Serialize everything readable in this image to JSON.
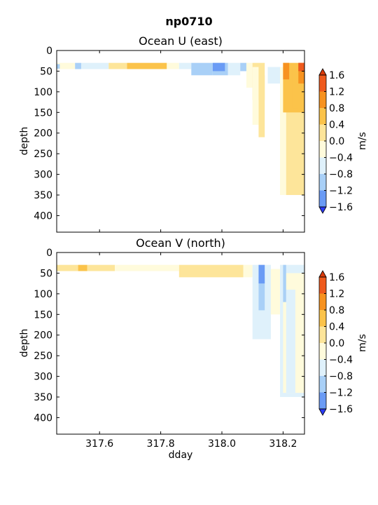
{
  "figure": {
    "title": "np0710"
  },
  "colors": {
    "levels": [
      "#2b3bf5",
      "#4d6ff5",
      "#6a9bf5",
      "#a9d0f7",
      "#dff1fb",
      "#fffbdc",
      "#fde59a",
      "#fbc34a",
      "#f7921f",
      "#ef5a1d",
      "#d93a0a"
    ]
  },
  "chart_data": [
    {
      "type": "heatmap",
      "title": "Ocean U (east)",
      "xlabel": "",
      "ylabel": "depth",
      "xlim": [
        317.46,
        318.27
      ],
      "ylim": [
        440,
        0
      ],
      "x_ticks": [
        "317.6",
        "317.8",
        "318.0",
        "318.2"
      ],
      "y_ticks": [
        "0",
        "50",
        "100",
        "150",
        "200",
        "250",
        "300",
        "350",
        "400"
      ],
      "colorbar": {
        "label": "m/s",
        "ticks": [
          "1.6",
          "1.2",
          "0.8",
          "0.4",
          "0.0",
          "−0.4",
          "−0.8",
          "−1.2",
          "−1.6"
        ],
        "extend": "both"
      },
      "cells": [
        {
          "x0": 317.46,
          "x1": 317.52,
          "d0": 30,
          "d1": 45,
          "level": 5
        },
        {
          "x0": 317.46,
          "x1": 317.47,
          "d0": 33,
          "d1": 44,
          "level": 3
        },
        {
          "x0": 317.52,
          "x1": 317.54,
          "d0": 30,
          "d1": 45,
          "level": 3
        },
        {
          "x0": 317.54,
          "x1": 317.63,
          "d0": 30,
          "d1": 45,
          "level": 4
        },
        {
          "x0": 317.63,
          "x1": 317.69,
          "d0": 30,
          "d1": 45,
          "level": 6
        },
        {
          "x0": 317.69,
          "x1": 317.82,
          "d0": 30,
          "d1": 45,
          "level": 7
        },
        {
          "x0": 317.82,
          "x1": 317.86,
          "d0": 30,
          "d1": 45,
          "level": 5
        },
        {
          "x0": 317.86,
          "x1": 317.9,
          "d0": 30,
          "d1": 45,
          "level": 4
        },
        {
          "x0": 317.9,
          "x1": 317.97,
          "d0": 30,
          "d1": 60,
          "level": 3
        },
        {
          "x0": 317.97,
          "x1": 318.02,
          "d0": 30,
          "d1": 60,
          "level": 3
        },
        {
          "x0": 317.97,
          "x1": 318.01,
          "d0": 30,
          "d1": 50,
          "level": 2
        },
        {
          "x0": 318.02,
          "x1": 318.06,
          "d0": 30,
          "d1": 60,
          "level": 4
        },
        {
          "x0": 318.06,
          "x1": 318.08,
          "d0": 30,
          "d1": 50,
          "level": 3
        },
        {
          "x0": 318.08,
          "x1": 318.1,
          "d0": 30,
          "d1": 90,
          "level": 5
        },
        {
          "x0": 318.1,
          "x1": 318.14,
          "d0": 30,
          "d1": 120,
          "level": 6
        },
        {
          "x0": 318.12,
          "x1": 318.14,
          "d0": 60,
          "d1": 210,
          "level": 6
        },
        {
          "x0": 318.1,
          "x1": 318.12,
          "d0": 40,
          "d1": 180,
          "level": 5
        },
        {
          "x0": 318.15,
          "x1": 318.19,
          "d0": 40,
          "d1": 80,
          "level": 4
        },
        {
          "x0": 318.19,
          "x1": 318.27,
          "d0": 40,
          "d1": 350,
          "level": 5
        },
        {
          "x0": 318.21,
          "x1": 318.27,
          "d0": 120,
          "d1": 350,
          "level": 6
        },
        {
          "x0": 318.2,
          "x1": 318.27,
          "d0": 30,
          "d1": 150,
          "level": 7
        },
        {
          "x0": 318.2,
          "x1": 318.22,
          "d0": 30,
          "d1": 70,
          "level": 8
        },
        {
          "x0": 318.23,
          "x1": 318.25,
          "d0": 40,
          "d1": 140,
          "level": 7
        },
        {
          "x0": 318.25,
          "x1": 318.27,
          "d0": 30,
          "d1": 80,
          "level": 8
        },
        {
          "x0": 318.25,
          "x1": 318.27,
          "d0": 30,
          "d1": 50,
          "level": 9
        }
      ]
    },
    {
      "type": "heatmap",
      "title": "Ocean V (north)",
      "xlabel": "dday",
      "ylabel": "depth",
      "xlim": [
        317.46,
        318.27
      ],
      "ylim": [
        440,
        0
      ],
      "x_ticks": [
        "317.6",
        "317.8",
        "318.0",
        "318.2"
      ],
      "y_ticks": [
        "0",
        "50",
        "100",
        "150",
        "200",
        "250",
        "300",
        "350",
        "400"
      ],
      "colorbar": {
        "label": "m/s",
        "ticks": [
          "1.6",
          "1.2",
          "0.8",
          "0.4",
          "0.0",
          "−0.4",
          "−0.8",
          "−1.2",
          "−1.6"
        ],
        "extend": "both"
      },
      "cells": [
        {
          "x0": 317.46,
          "x1": 317.53,
          "d0": 30,
          "d1": 45,
          "level": 6
        },
        {
          "x0": 317.53,
          "x1": 317.56,
          "d0": 30,
          "d1": 45,
          "level": 7
        },
        {
          "x0": 317.56,
          "x1": 317.65,
          "d0": 30,
          "d1": 45,
          "level": 6
        },
        {
          "x0": 317.65,
          "x1": 317.86,
          "d0": 30,
          "d1": 45,
          "level": 5
        },
        {
          "x0": 317.86,
          "x1": 318.07,
          "d0": 30,
          "d1": 60,
          "level": 6
        },
        {
          "x0": 318.07,
          "x1": 318.1,
          "d0": 30,
          "d1": 60,
          "level": 5
        },
        {
          "x0": 318.1,
          "x1": 318.16,
          "d0": 30,
          "d1": 210,
          "level": 4
        },
        {
          "x0": 318.12,
          "x1": 318.14,
          "d0": 60,
          "d1": 140,
          "level": 3
        },
        {
          "x0": 318.12,
          "x1": 318.14,
          "d0": 30,
          "d1": 75,
          "level": 2
        },
        {
          "x0": 318.16,
          "x1": 318.19,
          "d0": 40,
          "d1": 150,
          "level": 5
        },
        {
          "x0": 318.19,
          "x1": 318.27,
          "d0": 30,
          "d1": 350,
          "level": 4
        },
        {
          "x0": 318.2,
          "x1": 318.27,
          "d0": 50,
          "d1": 340,
          "level": 5
        },
        {
          "x0": 318.21,
          "x1": 318.24,
          "d0": 90,
          "d1": 340,
          "level": 4
        },
        {
          "x0": 318.2,
          "x1": 318.21,
          "d0": 30,
          "d1": 120,
          "level": 3
        }
      ]
    }
  ]
}
